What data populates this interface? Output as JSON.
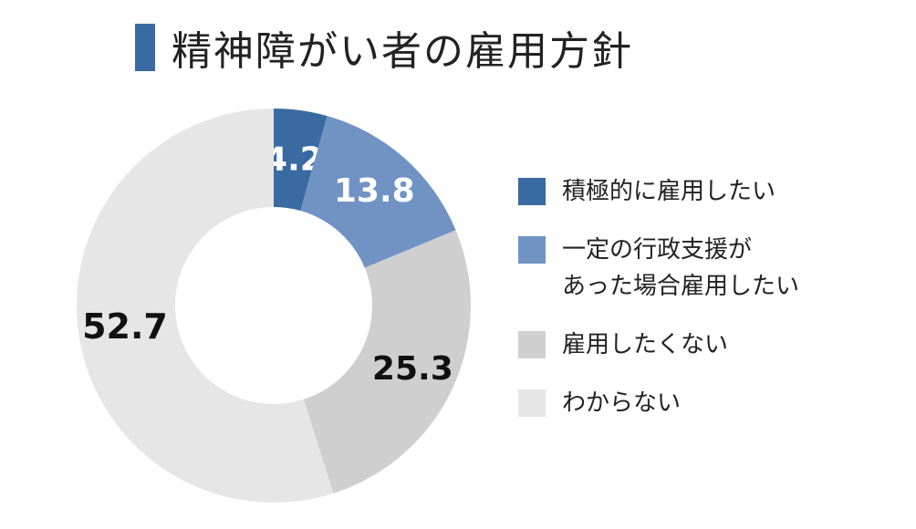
{
  "header": {
    "title": "精神障がい者の雇用方針",
    "accent_color": "#3a6aa2"
  },
  "chart_data": {
    "type": "pie",
    "donut": true,
    "title": "精神障がい者の雇用方針",
    "categories": [
      "積極的に雇用したい",
      "一定の行政支援が\nあった場合雇用したい",
      "雇用したくない",
      "わからない"
    ],
    "values": [
      4.2,
      13.8,
      25.3,
      52.7
    ],
    "value_labels": [
      "4.2",
      "13.8",
      "25.3",
      "52.7"
    ],
    "colors": [
      "#3a6aa2",
      "#7093c3",
      "#cfcfcf",
      "#e6e6e6"
    ],
    "label_colors": [
      "#ffffff",
      "#ffffff",
      "#111111",
      "#111111"
    ],
    "legend_position": "right"
  }
}
